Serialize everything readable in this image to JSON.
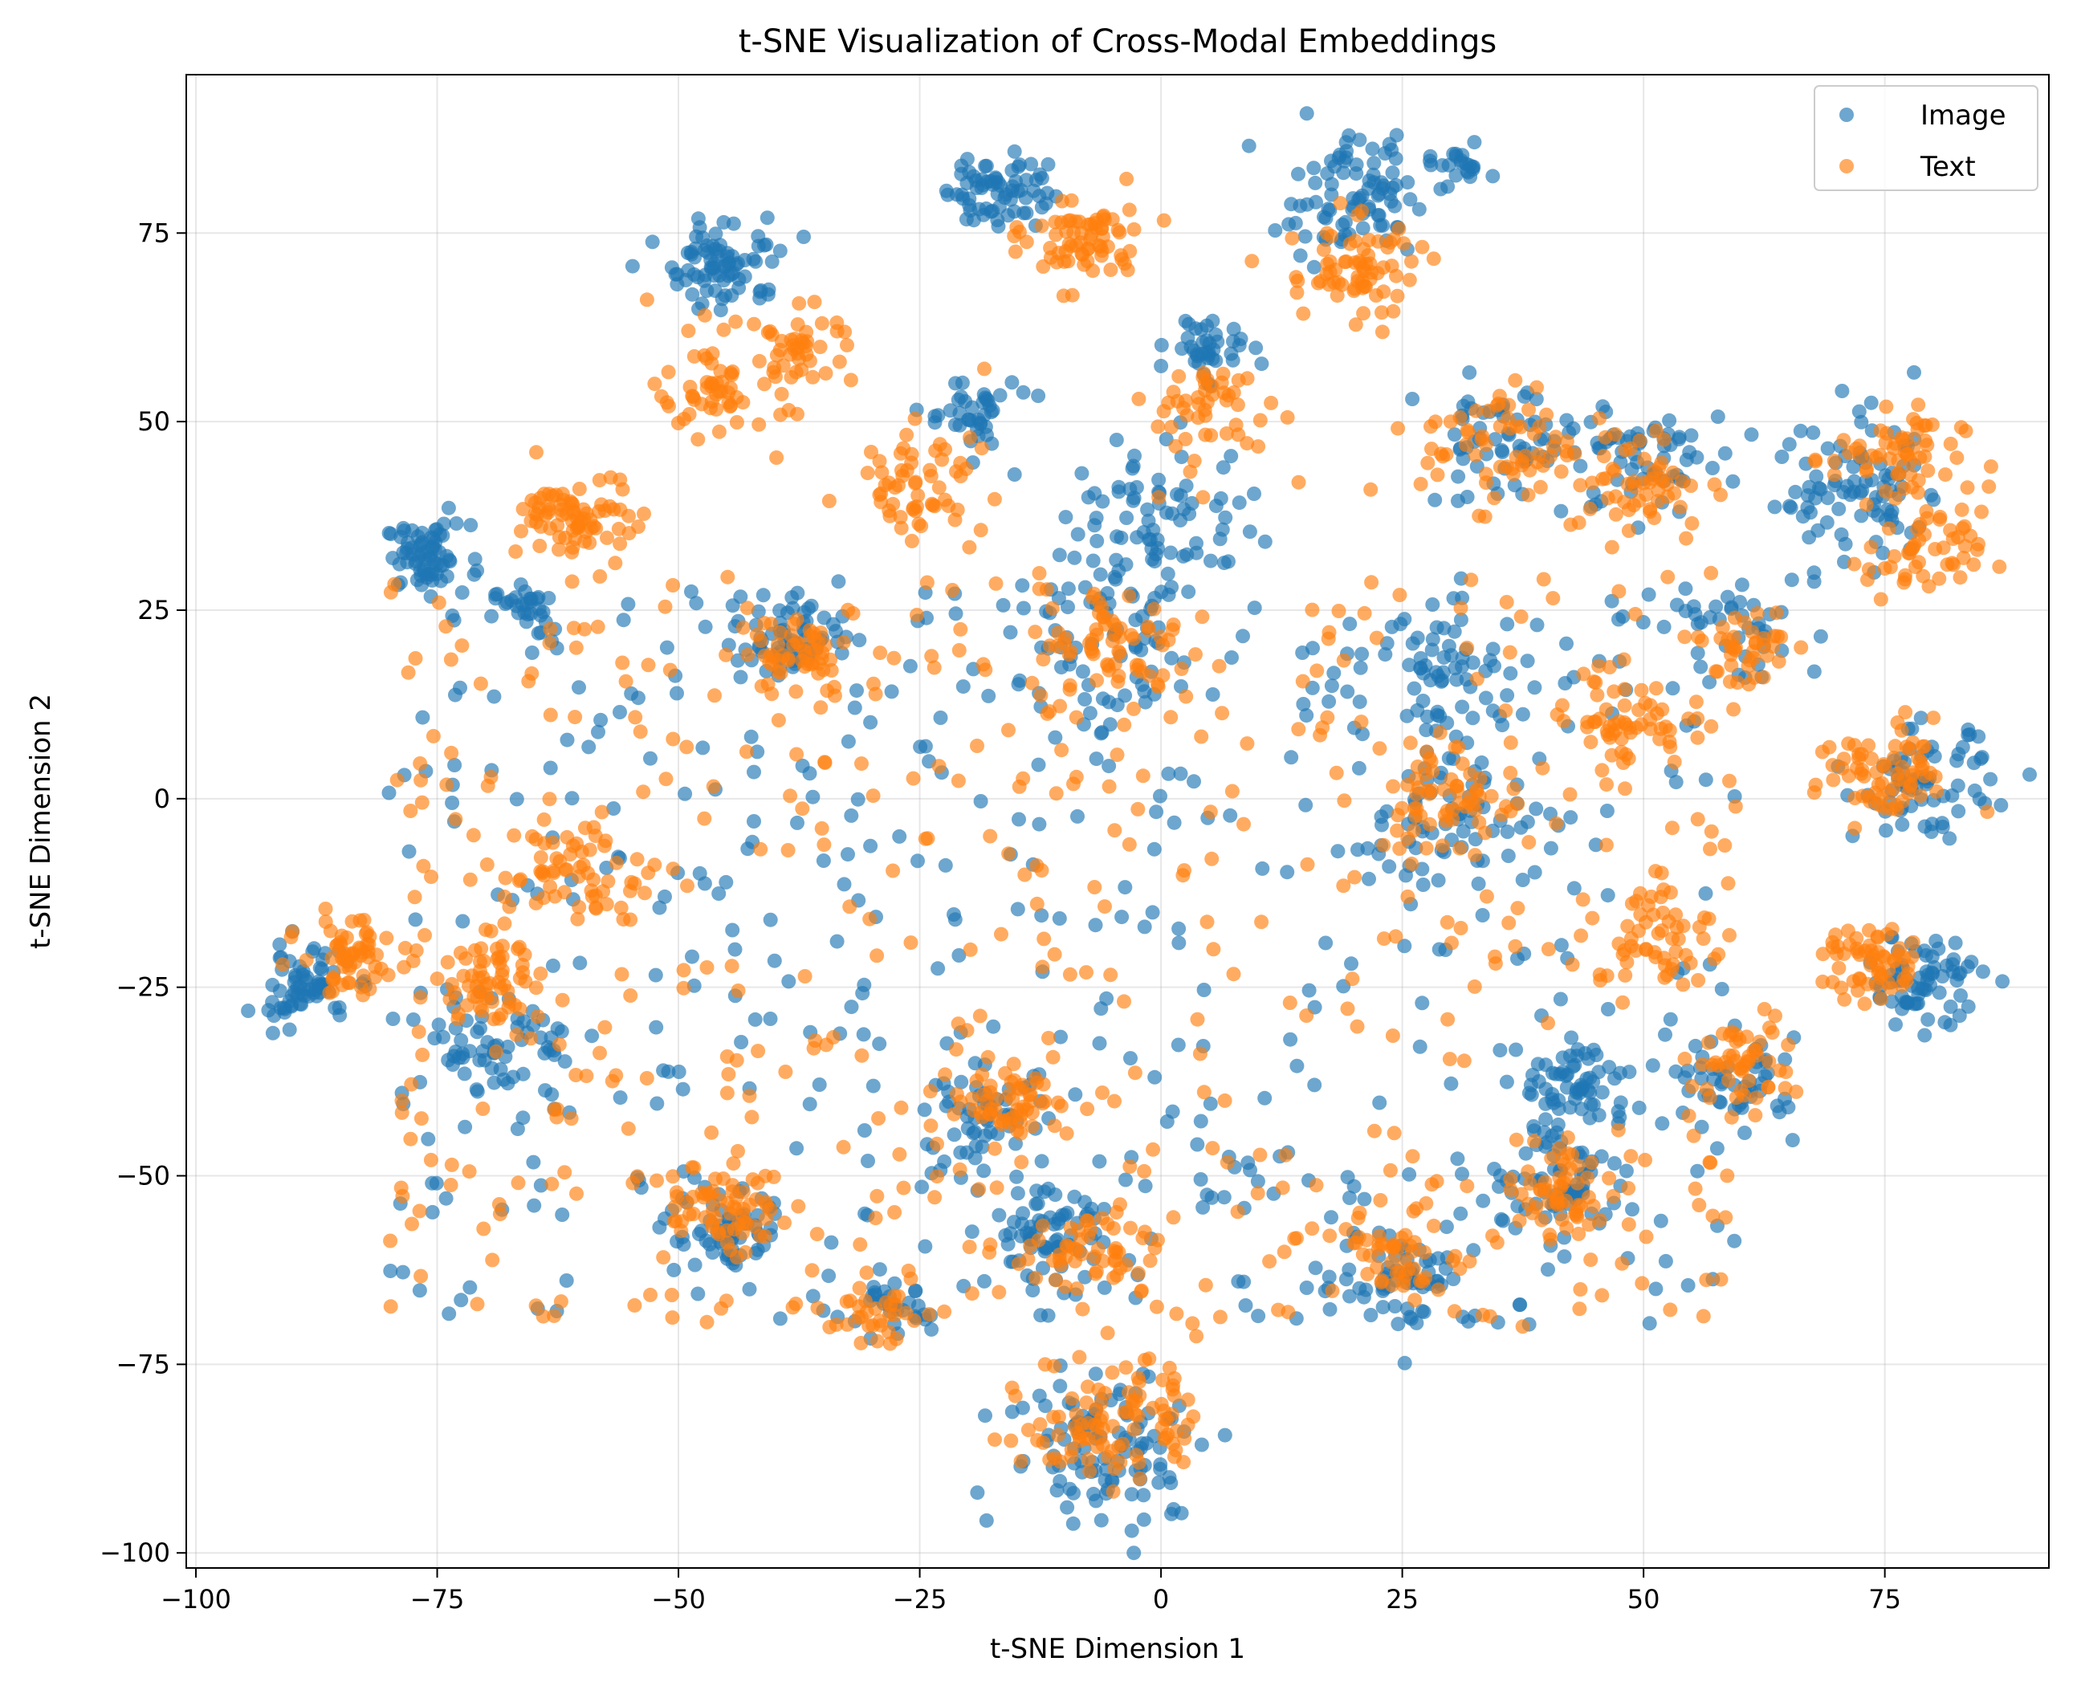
{
  "chart_data": {
    "type": "scatter",
    "title": "t-SNE Visualization of Cross-Modal Embeddings",
    "xlabel": "t-SNE Dimension 1",
    "ylabel": "t-SNE Dimension 2",
    "xlim": [
      -101,
      92
    ],
    "ylim": [
      -102,
      96
    ],
    "xticks": [
      -100,
      -75,
      -50,
      -25,
      0,
      25,
      50,
      75
    ],
    "yticks": [
      -100,
      -75,
      -50,
      -25,
      0,
      25,
      50,
      75
    ],
    "xtick_labels": [
      "−100",
      "−75",
      "−50",
      "−25",
      "0",
      "25",
      "50",
      "75"
    ],
    "ytick_labels": [
      "−100",
      "−75",
      "−50",
      "−25",
      "0",
      "25",
      "50",
      "75"
    ],
    "grid": true,
    "legend_position": "top-right",
    "series": [
      {
        "name": "Image",
        "color": "#1f77b4",
        "clusters": [
          {
            "center": [
              -76,
              32
            ],
            "spread": 2.2,
            "count": 70
          },
          {
            "center": [
              -66,
              25
            ],
            "spread": 1.6,
            "count": 30
          },
          {
            "center": [
              -45,
              71
            ],
            "spread": 3.0,
            "count": 80
          },
          {
            "center": [
              -17,
              81
            ],
            "spread": 2.6,
            "count": 70
          },
          {
            "center": [
              20,
              80
            ],
            "spread": 4.0,
            "count": 90
          },
          {
            "center": [
              31,
              84
            ],
            "spread": 1.3,
            "count": 20
          },
          {
            "center": [
              5,
              60
            ],
            "spread": 2.0,
            "count": 40
          },
          {
            "center": [
              -20,
              51
            ],
            "spread": 2.5,
            "count": 40
          },
          {
            "center": [
              -89,
              -25
            ],
            "spread": 2.5,
            "count": 70
          },
          {
            "center": [
              -68,
              -33
            ],
            "spread": 3.5,
            "count": 60
          },
          {
            "center": [
              -45,
              -58
            ],
            "spread": 3.0,
            "count": 60
          },
          {
            "center": [
              -28,
              -68
            ],
            "spread": 2.0,
            "count": 30
          },
          {
            "center": [
              -12,
              -58
            ],
            "spread": 3.0,
            "count": 60
          },
          {
            "center": [
              -18,
              -42
            ],
            "spread": 3.0,
            "count": 50
          },
          {
            "center": [
              -5,
              -86
            ],
            "spread": 5.5,
            "count": 110
          },
          {
            "center": [
              25,
              -63
            ],
            "spread": 3.5,
            "count": 60
          },
          {
            "center": [
              42,
              -50
            ],
            "spread": 4.0,
            "count": 70
          },
          {
            "center": [
              43,
              -38
            ],
            "spread": 3.0,
            "count": 60
          },
          {
            "center": [
              60,
              -38
            ],
            "spread": 3.0,
            "count": 50
          },
          {
            "center": [
              79,
              -24
            ],
            "spread": 3.0,
            "count": 70
          },
          {
            "center": [
              79,
              2
            ],
            "spread": 3.5,
            "count": 70
          },
          {
            "center": [
              72,
              40
            ],
            "spread": 5.0,
            "count": 90
          },
          {
            "center": [
              50,
              45
            ],
            "spread": 4.0,
            "count": 60
          },
          {
            "center": [
              35,
              47
            ],
            "spread": 4.0,
            "count": 60
          },
          {
            "center": [
              30,
              17
            ],
            "spread": 4.0,
            "count": 60
          },
          {
            "center": [
              -38,
              22
            ],
            "spread": 3.0,
            "count": 60
          },
          {
            "center": [
              0,
              37
            ],
            "spread": 5.0,
            "count": 80
          },
          {
            "center": [
              -5,
              20
            ],
            "spread": 5.0,
            "count": 60
          },
          {
            "center": [
              30,
              -2
            ],
            "spread": 5.0,
            "count": 60
          },
          {
            "center": [
              60,
              22
            ],
            "spread": 4.0,
            "count": 40
          }
        ],
        "scatter_regions": [
          {
            "xrange": [
              -80,
              60
            ],
            "yrange": [
              -70,
              30
            ],
            "count": 480
          }
        ]
      },
      {
        "name": "Text",
        "color": "#ff7f0e",
        "clusters": [
          {
            "center": [
              -60,
              37
            ],
            "spread": 3.0,
            "count": 80
          },
          {
            "center": [
              -45,
              55
            ],
            "spread": 3.5,
            "count": 70
          },
          {
            "center": [
              -37,
              60
            ],
            "spread": 2.5,
            "count": 30
          },
          {
            "center": [
              -8,
              74
            ],
            "spread": 3.0,
            "count": 70
          },
          {
            "center": [
              20,
              70
            ],
            "spread": 3.5,
            "count": 70
          },
          {
            "center": [
              -25,
              42
            ],
            "spread": 3.5,
            "count": 60
          },
          {
            "center": [
              5,
              51
            ],
            "spread": 4.0,
            "count": 50
          },
          {
            "center": [
              -84,
              -21
            ],
            "spread": 2.5,
            "count": 60
          },
          {
            "center": [
              -70,
              -25
            ],
            "spread": 3.0,
            "count": 60
          },
          {
            "center": [
              -45,
              -54
            ],
            "spread": 3.0,
            "count": 60
          },
          {
            "center": [
              -30,
              -68
            ],
            "spread": 2.0,
            "count": 30
          },
          {
            "center": [
              -7,
              -60
            ],
            "spread": 3.0,
            "count": 50
          },
          {
            "center": [
              -15,
              -40
            ],
            "spread": 2.5,
            "count": 50
          },
          {
            "center": [
              -5,
              -82
            ],
            "spread": 4.5,
            "count": 100
          },
          {
            "center": [
              25,
              -60
            ],
            "spread": 3.0,
            "count": 50
          },
          {
            "center": [
              42,
              -52
            ],
            "spread": 3.5,
            "count": 60
          },
          {
            "center": [
              60,
              -35
            ],
            "spread": 3.0,
            "count": 50
          },
          {
            "center": [
              74,
              -22
            ],
            "spread": 2.5,
            "count": 60
          },
          {
            "center": [
              75,
              3
            ],
            "spread": 3.5,
            "count": 70
          },
          {
            "center": [
              76,
              45
            ],
            "spread": 3.5,
            "count": 60
          },
          {
            "center": [
              79,
              32
            ],
            "spread": 3.0,
            "count": 50
          },
          {
            "center": [
              49,
              42
            ],
            "spread": 4.0,
            "count": 60
          },
          {
            "center": [
              35,
              47
            ],
            "spread": 4.0,
            "count": 60
          },
          {
            "center": [
              -38,
              20
            ],
            "spread": 3.0,
            "count": 50
          },
          {
            "center": [
              -5,
              20
            ],
            "spread": 4.0,
            "count": 60
          },
          {
            "center": [
              30,
              0
            ],
            "spread": 4.0,
            "count": 60
          },
          {
            "center": [
              48,
              10
            ],
            "spread": 3.0,
            "count": 50
          },
          {
            "center": [
              60,
              20
            ],
            "spread": 3.0,
            "count": 40
          },
          {
            "center": [
              51,
              -18
            ],
            "spread": 3.0,
            "count": 50
          },
          {
            "center": [
              -60,
              -10
            ],
            "spread": 4.0,
            "count": 60
          }
        ],
        "scatter_regions": [
          {
            "xrange": [
              -80,
              60
            ],
            "yrange": [
              -70,
              30
            ],
            "count": 500
          }
        ]
      }
    ]
  }
}
